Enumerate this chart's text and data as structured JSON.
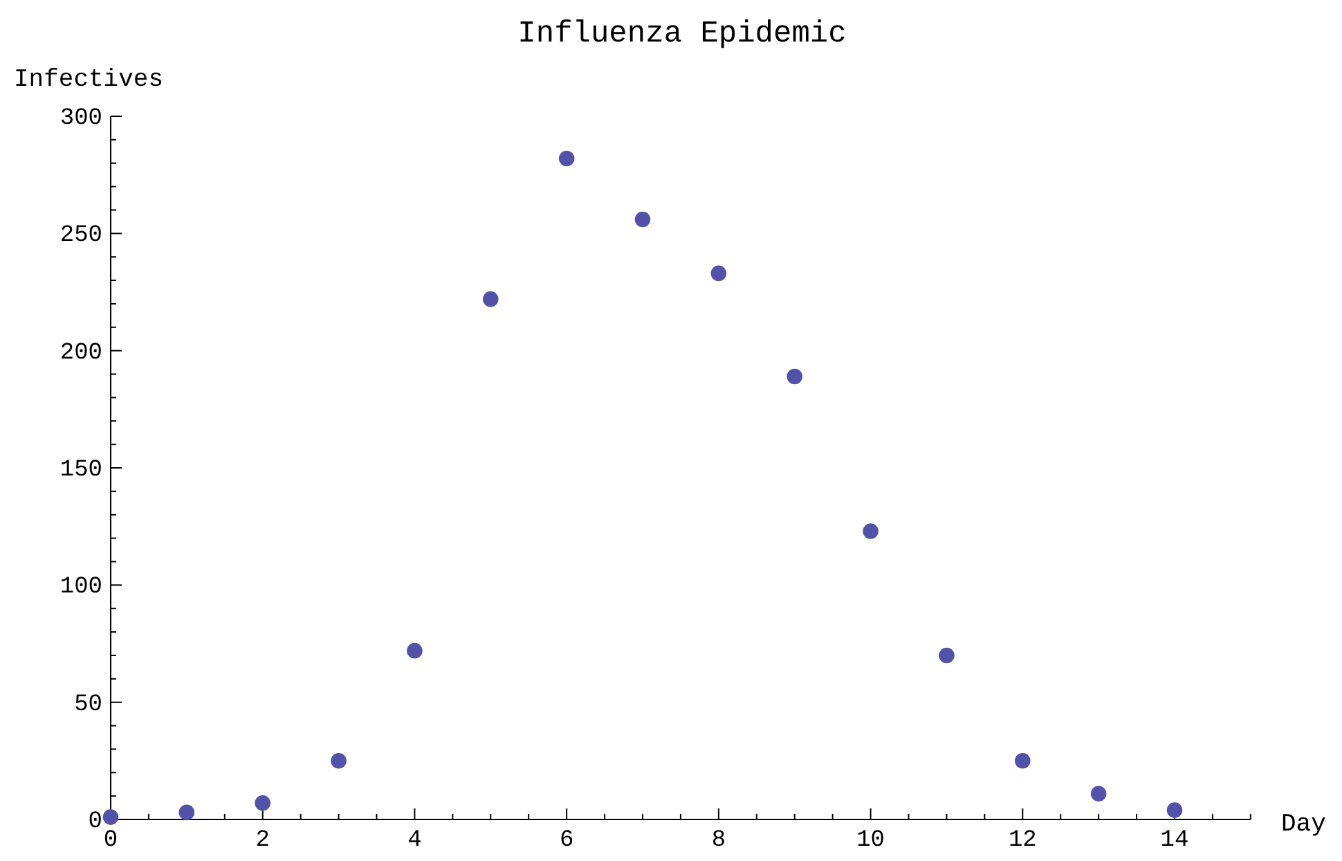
{
  "chart_data": {
    "type": "scatter",
    "title": "Influenza Epidemic",
    "xlabel": "Day",
    "ylabel": "Infectives",
    "x": [
      0,
      1,
      2,
      3,
      4,
      5,
      6,
      7,
      8,
      9,
      10,
      11,
      12,
      13,
      14
    ],
    "series": [
      {
        "color": "#5252aa",
        "values": [
          1,
          3,
          7,
          25,
          72,
          222,
          282,
          256,
          233,
          189,
          123,
          70,
          25,
          11,
          4
        ]
      }
    ],
    "xlim": [
      0,
      15
    ],
    "xticks": [
      0,
      {
        "value": 0.5,
        "label": null
      },
      {
        "value": 1,
        "label": null
      },
      {
        "value": 1.5,
        "label": null
      },
      2,
      {
        "value": 2.5,
        "label": null
      },
      {
        "value": 3,
        "label": null
      },
      {
        "value": 3.5,
        "label": null
      },
      4,
      {
        "value": 4.5,
        "label": null
      },
      {
        "value": 5,
        "label": null
      },
      {
        "value": 5.5,
        "label": null
      },
      6,
      {
        "value": 6.5,
        "label": null
      },
      {
        "value": 7,
        "label": null
      },
      {
        "value": 7.5,
        "label": null
      },
      8,
      {
        "value": 8.5,
        "label": null
      },
      {
        "value": 9,
        "label": null
      },
      {
        "value": 9.5,
        "label": null
      },
      10,
      {
        "value": 10.5,
        "label": null
      },
      {
        "value": 11,
        "label": null
      },
      {
        "value": 11.5,
        "label": null
      },
      12,
      {
        "value": 12.5,
        "label": null
      },
      {
        "value": 13,
        "label": null
      },
      {
        "value": 13.5,
        "label": null
      },
      14,
      {
        "value": 14.5,
        "label": null
      },
      {
        "value": 15,
        "label": null
      }
    ],
    "ylim": [
      0,
      300
    ],
    "yticks": [
      0,
      {
        "value": 10,
        "label": null
      },
      {
        "value": 20,
        "label": null
      },
      {
        "value": 30,
        "label": null
      },
      {
        "value": 40,
        "label": null
      },
      50,
      {
        "value": 60,
        "label": null
      },
      {
        "value": 70,
        "label": null
      },
      {
        "value": 80,
        "label": null
      },
      {
        "value": 90,
        "label": null
      },
      100,
      {
        "value": 110,
        "label": null
      },
      {
        "value": 120,
        "label": null
      },
      {
        "value": 130,
        "label": null
      },
      {
        "value": 140,
        "label": null
      },
      150,
      {
        "value": 160,
        "label": null
      },
      {
        "value": 170,
        "label": null
      },
      {
        "value": 180,
        "label": null
      },
      {
        "value": 190,
        "label": null
      },
      200,
      {
        "value": 210,
        "label": null
      },
      {
        "value": 220,
        "label": null
      },
      {
        "value": 230,
        "label": null
      },
      {
        "value": 240,
        "label": null
      },
      250,
      {
        "value": 260,
        "label": null
      },
      {
        "value": 270,
        "label": null
      },
      {
        "value": 280,
        "label": null
      },
      {
        "value": 290,
        "label": null
      },
      300
    ],
    "marker": "circle",
    "grid": false
  }
}
